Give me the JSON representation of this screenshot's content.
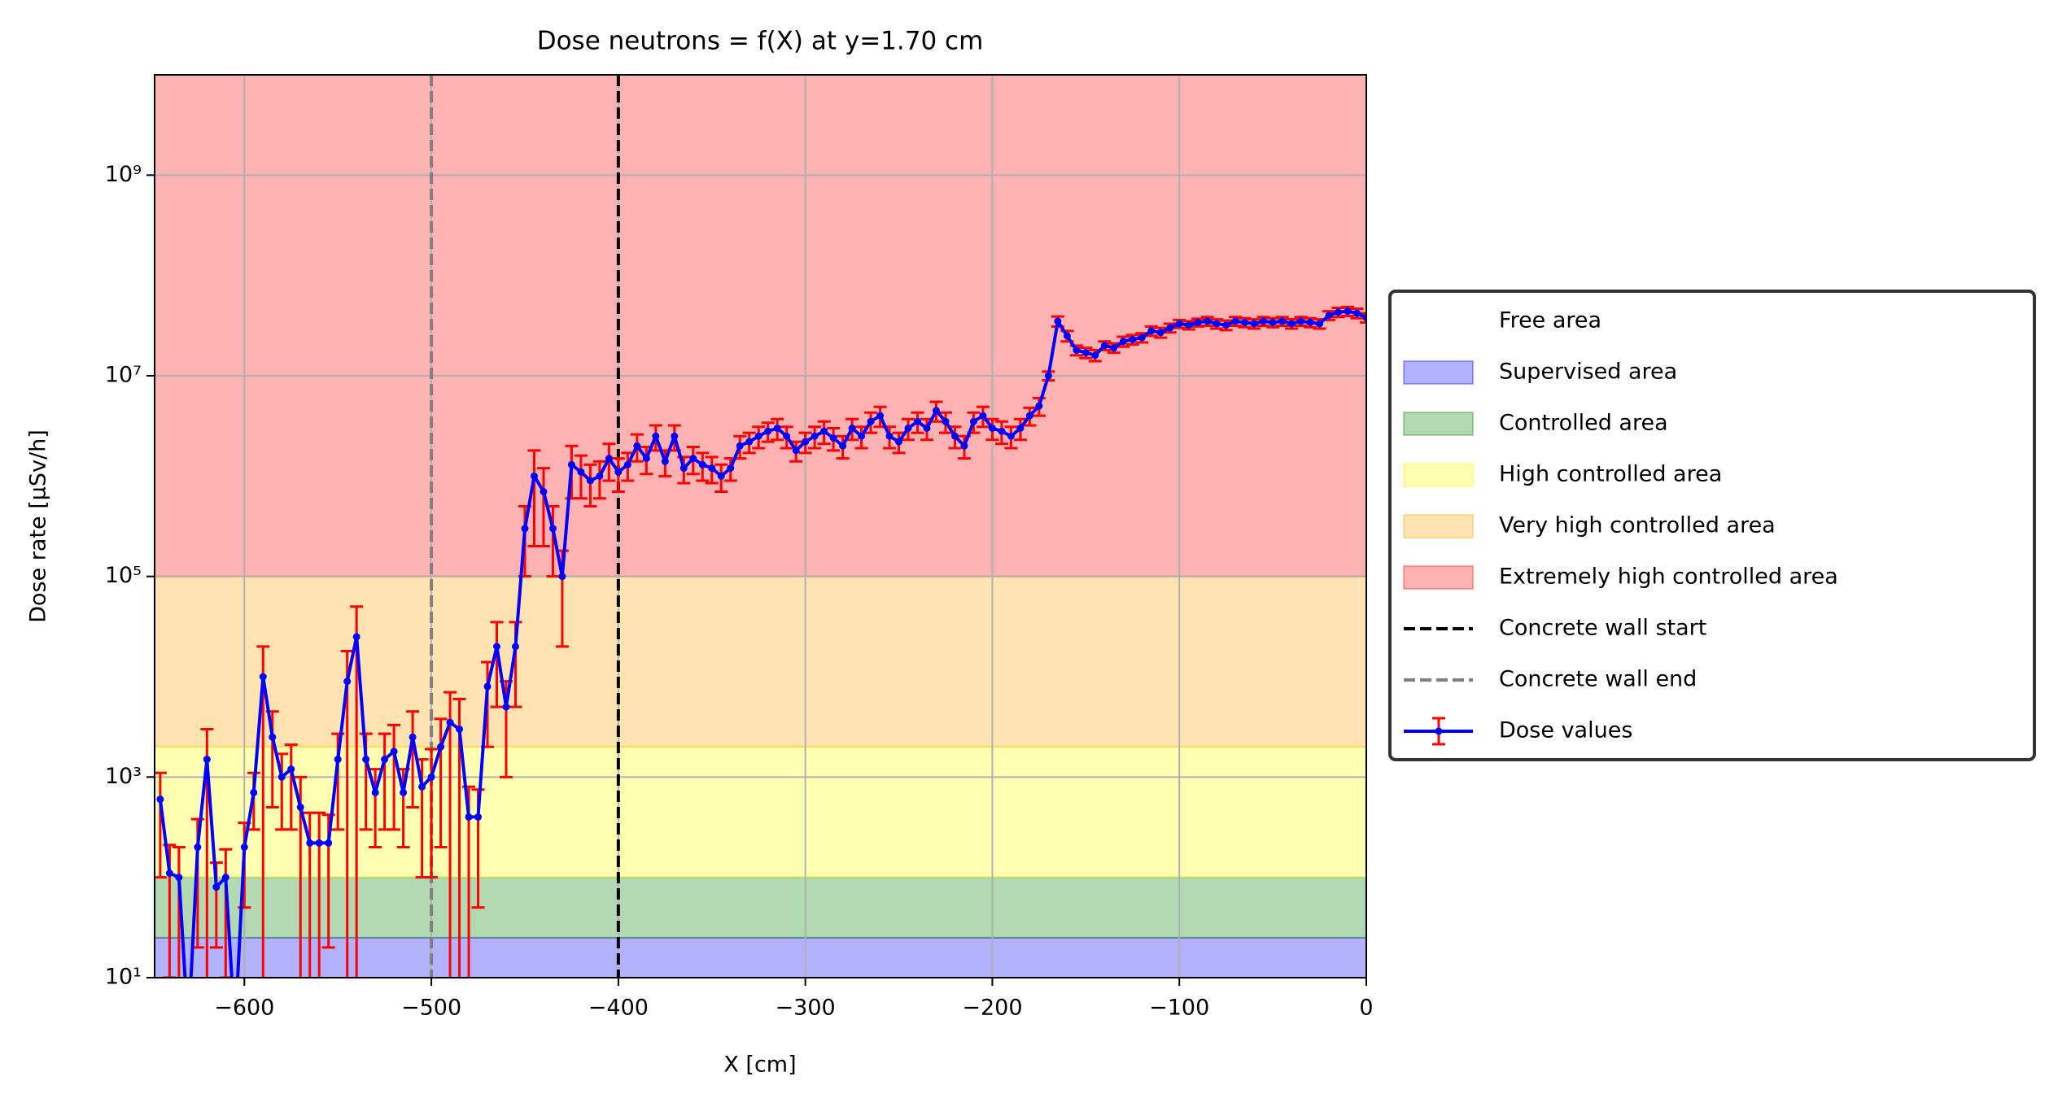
{
  "chart_data": {
    "type": "line",
    "title": "Dose neutrons = f(X) at y=1.70 cm",
    "xlabel": "X [cm]",
    "ylabel": "Dose rate [µSv/h]",
    "xlim": [
      -648,
      0
    ],
    "ylim": [
      10,
      10000000000
    ],
    "ylog": true,
    "grid": true,
    "legend": "right",
    "xticks": [
      {
        "value": -600,
        "label": "−600"
      },
      {
        "value": -500,
        "label": "−500"
      },
      {
        "value": -400,
        "label": "−400"
      },
      {
        "value": -300,
        "label": "−300"
      },
      {
        "value": -200,
        "label": "−200"
      },
      {
        "value": -100,
        "label": "−100"
      },
      0
    ],
    "yticks": [
      {
        "value": 10,
        "label": "10¹"
      },
      {
        "value": 1000,
        "label": "10³"
      },
      {
        "value": 100000,
        "label": "10⁵"
      },
      {
        "value": 10000000,
        "label": "10⁷"
      },
      {
        "value": 1000000000,
        "label": "10⁹"
      }
    ],
    "zones": [
      {
        "name": "Free area",
        "color": "#ffffff"
      },
      {
        "name": "Supervised area",
        "color": "#0000ff",
        "from": 10,
        "to": 25
      },
      {
        "name": "Controlled area",
        "color": "#008000",
        "from": 25,
        "to": 100
      },
      {
        "name": "High controlled area",
        "color": "#ffff00",
        "from": 100,
        "to": 2000
      },
      {
        "name": "Very high controlled area",
        "color": "#ffa500",
        "from": 2000,
        "to": 100000
      },
      {
        "name": "Extremely high controlled area",
        "color": "#ff0000",
        "from": 100000,
        "to": 10000000000
      }
    ],
    "vlines": [
      {
        "name": "Concrete wall start",
        "x": -400,
        "color": "#000000"
      },
      {
        "name": "Concrete wall end",
        "x": -500,
        "color": "#808080"
      }
    ],
    "series": [
      {
        "name": "Dose values",
        "color": "#0000ff",
        "error_color": "#ff0000",
        "x": [
          -645,
          -640,
          -635,
          -630,
          -625,
          -620,
          -615,
          -610,
          -605,
          -600,
          -595,
          -590,
          -585,
          -580,
          -575,
          -570,
          -565,
          -560,
          -555,
          -550,
          -545,
          -540,
          -535,
          -530,
          -525,
          -520,
          -515,
          -510,
          -505,
          -500,
          -495,
          -490,
          -485,
          -480,
          -475,
          -470,
          -465,
          -460,
          -455,
          -450,
          -445,
          -440,
          -435,
          -430,
          -425,
          -420,
          -415,
          -410,
          -405,
          -400,
          -395,
          -390,
          -385,
          -380,
          -375,
          -370,
          -365,
          -360,
          -355,
          -350,
          -345,
          -340,
          -335,
          -330,
          -325,
          -320,
          -315,
          -310,
          -305,
          -300,
          -295,
          -290,
          -285,
          -280,
          -275,
          -270,
          -265,
          -260,
          -255,
          -250,
          -245,
          -240,
          -235,
          -230,
          -225,
          -220,
          -215,
          -210,
          -205,
          -200,
          -195,
          -190,
          -185,
          -180,
          -175,
          -170,
          -165,
          -160,
          -155,
          -150,
          -145,
          -140,
          -135,
          -130,
          -125,
          -120,
          -115,
          -110,
          -105,
          -100,
          -95,
          -90,
          -85,
          -80,
          -75,
          -70,
          -65,
          -60,
          -55,
          -50,
          -45,
          -40,
          -35,
          -30,
          -25,
          -20,
          -15,
          -10,
          -5,
          0
        ],
        "values": [
          600,
          110,
          100,
          3,
          200,
          1500,
          80,
          100,
          3,
          200,
          700,
          10000,
          2500,
          1000,
          1200,
          500,
          220,
          220,
          220,
          1500,
          9000,
          25000,
          1500,
          700,
          1500,
          1800,
          700,
          2500,
          800,
          1000,
          2000,
          3500,
          3000,
          400,
          400,
          8000,
          20000,
          5000,
          20000,
          300000,
          1000000,
          700000,
          300000,
          100000,
          1300000,
          1100000,
          900000,
          1000000,
          1500000,
          1100000,
          1300000,
          2000000,
          1500000,
          2500000,
          1400000,
          2500000,
          1200000,
          1500000,
          1300000,
          1200000,
          1000000,
          1200000,
          2000000,
          2200000,
          2500000,
          2800000,
          3000000,
          2500000,
          1800000,
          2200000,
          2500000,
          2800000,
          2400000,
          2000000,
          3000000,
          2500000,
          3500000,
          4000000,
          2500000,
          2200000,
          3000000,
          3500000,
          3000000,
          4500000,
          3500000,
          2500000,
          2000000,
          3500000,
          4000000,
          3000000,
          2800000,
          2500000,
          3000000,
          4000000,
          5000000,
          10000000,
          35000000,
          25000000,
          18000000,
          17000000,
          16000000,
          20000000,
          19000000,
          22000000,
          23000000,
          24000000,
          28000000,
          27000000,
          30000000,
          33000000,
          32000000,
          34000000,
          35000000,
          33000000,
          32000000,
          35000000,
          34000000,
          33000000,
          35000000,
          34000000,
          35000000,
          33000000,
          35000000,
          34000000,
          33000000,
          40000000,
          43000000,
          44000000,
          42000000,
          38000000
        ],
        "errors": [
          500,
          100,
          100,
          3,
          180,
          1500,
          60,
          90,
          3,
          150,
          400,
          10000,
          2000,
          700,
          900,
          500,
          220,
          220,
          200,
          1200,
          9000,
          25000,
          1200,
          500,
          1200,
          1500,
          500,
          2000,
          700,
          900,
          1800,
          3500,
          3000,
          400,
          350,
          6000,
          15000,
          4000,
          15000,
          200000,
          800000,
          500000,
          200000,
          80000,
          700000,
          500000,
          400000,
          400000,
          600000,
          400000,
          400000,
          600000,
          450000,
          700000,
          400000,
          700000,
          350000,
          450000,
          400000,
          350000,
          300000,
          300000,
          500000,
          500000,
          600000,
          600000,
          700000,
          600000,
          400000,
          500000,
          600000,
          700000,
          600000,
          500000,
          700000,
          600000,
          800000,
          900000,
          600000,
          500000,
          700000,
          800000,
          700000,
          1000000,
          800000,
          600000,
          500000,
          800000,
          900000,
          700000,
          700000,
          600000,
          700000,
          800000,
          1000000,
          1000000,
          4000000,
          3000000,
          2000000,
          2000000,
          2000000,
          2000000,
          2000000,
          2500000,
          2500000,
          2500000,
          3000000,
          3000000,
          3000000,
          3000000,
          3000000,
          3000000,
          3500000,
          3500000,
          3500000,
          3500000,
          3500000,
          3500000,
          3500000,
          3500000,
          3500000,
          3500000,
          3500000,
          3500000,
          3500000,
          4000000,
          4500000,
          4500000,
          4500000,
          4000000
        ]
      }
    ]
  }
}
